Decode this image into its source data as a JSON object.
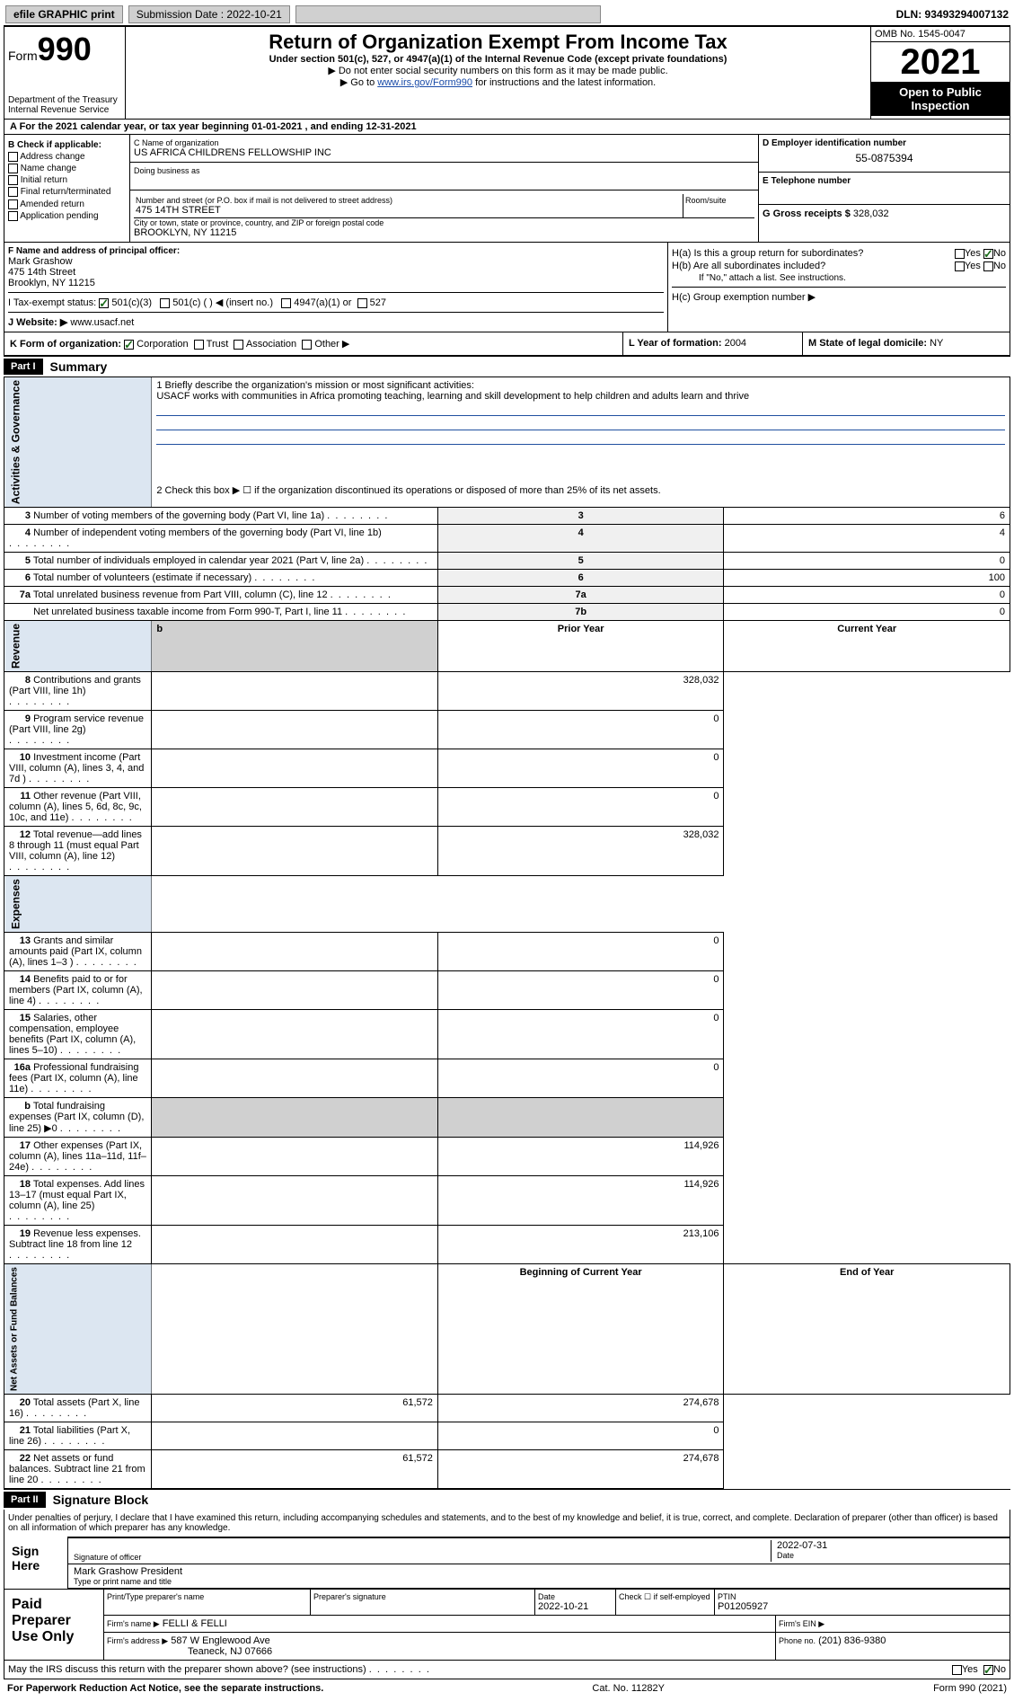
{
  "topbar": {
    "efile": "efile GRAPHIC print",
    "sub_lbl": "Submission Date : 2022-10-21",
    "dln": "DLN: 93493294007132"
  },
  "header": {
    "form_word": "Form",
    "form_num": "990",
    "title": "Return of Organization Exempt From Income Tax",
    "sub": "Under section 501(c), 527, or 4947(a)(1) of the Internal Revenue Code (except private foundations)",
    "note1": "▶ Do not enter social security numbers on this form as it may be made public.",
    "note2_pre": "▶ Go to ",
    "note2_link": "www.irs.gov/Form990",
    "note2_post": " for instructions and the latest information.",
    "omb": "OMB No. 1545-0047",
    "year": "2021",
    "open1": "Open to Public",
    "open2": "Inspection",
    "dept1": "Department of the Treasury",
    "dept2": "Internal Revenue Service"
  },
  "row_a": "A For the 2021 calendar year, or tax year beginning 01-01-2021   , and ending 12-31-2021",
  "col_b": {
    "hdr": "B Check if applicable:",
    "items": [
      "Address change",
      "Name change",
      "Initial return",
      "Final return/terminated",
      "Amended return",
      "Application pending"
    ]
  },
  "col_c": {
    "name_lbl": "C Name of organization",
    "name": "US AFRICA CHILDRENS FELLOWSHIP INC",
    "dba_lbl": "Doing business as",
    "street_lbl": "Number and street (or P.O. box if mail is not delivered to street address)",
    "room_lbl": "Room/suite",
    "street": "475 14TH STREET",
    "city_lbl": "City or town, state or province, country, and ZIP or foreign postal code",
    "city": "BROOKLYN, NY  11215"
  },
  "col_d": {
    "lbl": "D Employer identification number",
    "val": "55-0875394"
  },
  "col_e": {
    "lbl": "E Telephone number"
  },
  "col_g": {
    "lbl": "G Gross receipts $",
    "val": "328,032"
  },
  "col_f": {
    "lbl": "F Name and address of principal officer:",
    "name": "Mark Grashow",
    "l1": "475 14th Street",
    "l2": "Brooklyn, NY  11215"
  },
  "col_h": {
    "a": "H(a)  Is this a group return for subordinates?",
    "b": "H(b)  Are all subordinates included?",
    "b_note": "If \"No,\" attach a list. See instructions.",
    "c": "H(c)  Group exemption number ▶",
    "yes": "Yes",
    "no": "No"
  },
  "row_i": {
    "lbl": "I   Tax-exempt status:",
    "o1": "501(c)(3)",
    "o2": "501(c) (   ) ◀ (insert no.)",
    "o3": "4947(a)(1) or",
    "o4": "527"
  },
  "row_j": {
    "lbl": "J   Website: ▶ ",
    "val": "www.usacf.net"
  },
  "row_k": {
    "lbl": "K Form of organization:",
    "o1": "Corporation",
    "o2": "Trust",
    "o3": "Association",
    "o4": "Other ▶"
  },
  "row_l": {
    "lbl": "L Year of formation:",
    "val": "2004"
  },
  "row_m": {
    "lbl": "M State of legal domicile:",
    "val": "NY"
  },
  "part1": {
    "hdr": "Part I",
    "title": "Summary",
    "l1_lbl": "1   Briefly describe the organization's mission or most significant activities:",
    "l1_txt": "USACF works with communities in Africa promoting teaching, learning and skill development to help children and adults learn and thrive",
    "l2": "2    Check this box ▶ ☐  if the organization discontinued its operations or disposed of more than 25% of its net assets.",
    "vert_ag": "Activities & Governance",
    "vert_rev": "Revenue",
    "vert_exp": "Expenses",
    "vert_na": "Net Assets or Fund Balances",
    "rows_ag": [
      {
        "n": "3",
        "d": "Number of voting members of the governing body (Part VI, line 1a)",
        "box": "3",
        "v": "6"
      },
      {
        "n": "4",
        "d": "Number of independent voting members of the governing body (Part VI, line 1b)",
        "box": "4",
        "v": "4"
      },
      {
        "n": "5",
        "d": "Total number of individuals employed in calendar year 2021 (Part V, line 2a)",
        "box": "5",
        "v": "0"
      },
      {
        "n": "6",
        "d": "Total number of volunteers (estimate if necessary)",
        "box": "6",
        "v": "100"
      },
      {
        "n": "7a",
        "d": "Total unrelated business revenue from Part VIII, column (C), line 12",
        "box": "7a",
        "v": "0"
      },
      {
        "n": "",
        "d": "Net unrelated business taxable income from Form 990-T, Part I, line 11",
        "box": "7b",
        "v": "0"
      }
    ],
    "hdr_prior": "Prior Year",
    "hdr_curr": "Current Year",
    "rows_rev": [
      {
        "n": "8",
        "d": "Contributions and grants (Part VIII, line 1h)",
        "p": "",
        "c": "328,032"
      },
      {
        "n": "9",
        "d": "Program service revenue (Part VIII, line 2g)",
        "p": "",
        "c": "0"
      },
      {
        "n": "10",
        "d": "Investment income (Part VIII, column (A), lines 3, 4, and 7d )",
        "p": "",
        "c": "0"
      },
      {
        "n": "11",
        "d": "Other revenue (Part VIII, column (A), lines 5, 6d, 8c, 9c, 10c, and 11e)",
        "p": "",
        "c": "0"
      },
      {
        "n": "12",
        "d": "Total revenue—add lines 8 through 11 (must equal Part VIII, column (A), line 12)",
        "p": "",
        "c": "328,032"
      }
    ],
    "rows_exp": [
      {
        "n": "13",
        "d": "Grants and similar amounts paid (Part IX, column (A), lines 1–3 )",
        "p": "",
        "c": "0"
      },
      {
        "n": "14",
        "d": "Benefits paid to or for members (Part IX, column (A), line 4)",
        "p": "",
        "c": "0"
      },
      {
        "n": "15",
        "d": "Salaries, other compensation, employee benefits (Part IX, column (A), lines 5–10)",
        "p": "",
        "c": "0"
      },
      {
        "n": "16a",
        "d": "Professional fundraising fees (Part IX, column (A), line 11e)",
        "p": "",
        "c": "0"
      },
      {
        "n": "b",
        "d": "Total fundraising expenses (Part IX, column (D), line 25) ▶0",
        "p": "SHADE",
        "c": "SHADE"
      },
      {
        "n": "17",
        "d": "Other expenses (Part IX, column (A), lines 11a–11d, 11f–24e)",
        "p": "",
        "c": "114,926"
      },
      {
        "n": "18",
        "d": "Total expenses. Add lines 13–17 (must equal Part IX, column (A), line 25)",
        "p": "",
        "c": "114,926"
      },
      {
        "n": "19",
        "d": "Revenue less expenses. Subtract line 18 from line 12",
        "p": "",
        "c": "213,106"
      }
    ],
    "hdr_begin": "Beginning of Current Year",
    "hdr_end": "End of Year",
    "rows_na": [
      {
        "n": "20",
        "d": "Total assets (Part X, line 16)",
        "p": "61,572",
        "c": "274,678"
      },
      {
        "n": "21",
        "d": "Total liabilities (Part X, line 26)",
        "p": "",
        "c": "0"
      },
      {
        "n": "22",
        "d": "Net assets or fund balances. Subtract line 21 from line 20",
        "p": "61,572",
        "c": "274,678"
      }
    ]
  },
  "part2": {
    "hdr": "Part II",
    "title": "Signature Block",
    "decl": "Under penalties of perjury, I declare that I have examined this return, including accompanying schedules and statements, and to the best of my knowledge and belief, it is true, correct, and complete. Declaration of preparer (other than officer) is based on all information of which preparer has any knowledge.",
    "sign_here": "Sign Here",
    "sig_officer": "Signature of officer",
    "sig_date": "2022-07-31",
    "date_lbl": "Date",
    "officer_name": "Mark Grashow President",
    "type_name": "Type or print name and title",
    "paid": "Paid Preparer Use Only",
    "prep_name_lbl": "Print/Type preparer's name",
    "prep_sig_lbl": "Preparer's signature",
    "prep_date_lbl": "Date",
    "prep_date": "2022-10-21",
    "check_lbl": "Check ☐ if self-employed",
    "ptin_lbl": "PTIN",
    "ptin": "P01205927",
    "firm_name_lbl": "Firm's name    ▶",
    "firm_name": "FELLI & FELLI",
    "firm_ein_lbl": "Firm's EIN ▶",
    "firm_addr_lbl": "Firm's address ▶",
    "firm_addr1": "587 W Englewood Ave",
    "firm_addr2": "Teaneck, NJ  07666",
    "phone_lbl": "Phone no.",
    "phone": "(201) 836-9380",
    "may_irs": "May the IRS discuss this return with the preparer shown above? (see instructions)"
  },
  "footer": {
    "pra": "For Paperwork Reduction Act Notice, see the separate instructions.",
    "cat": "Cat. No. 11282Y",
    "form": "Form 990 (2021)"
  }
}
